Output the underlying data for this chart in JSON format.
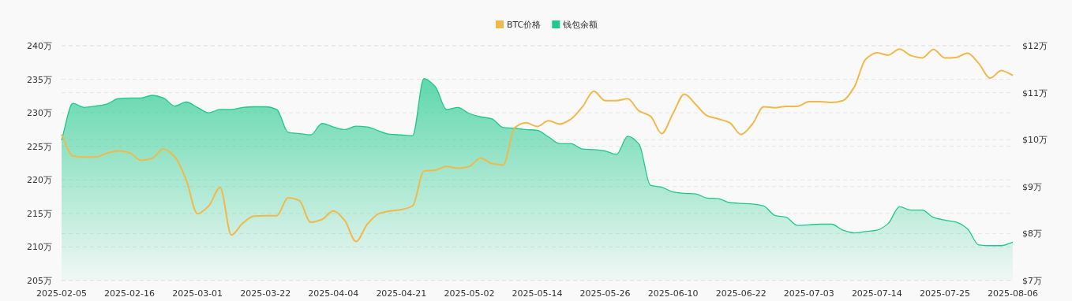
{
  "chart_data": {
    "type": "area",
    "legend": "top",
    "grid": true,
    "categories": [
      "2025-02-05",
      null,
      null,
      null,
      null,
      null,
      "2025-02-16",
      null,
      null,
      null,
      null,
      null,
      "2025-03-01",
      null,
      null,
      null,
      null,
      null,
      "2025-03-22",
      null,
      null,
      null,
      null,
      null,
      "2025-04-04",
      null,
      null,
      null,
      null,
      null,
      "2025-04-21",
      null,
      null,
      null,
      null,
      null,
      "2025-05-02",
      null,
      null,
      null,
      null,
      null,
      "2025-05-14",
      null,
      null,
      null,
      null,
      null,
      "2025-05-26",
      null,
      null,
      null,
      null,
      null,
      "2025-06-10",
      null,
      null,
      null,
      null,
      null,
      "2025-06-22",
      null,
      null,
      null,
      null,
      null,
      "2025-07-03",
      null,
      null,
      null,
      null,
      null,
      "2025-07-14",
      null,
      null,
      null,
      null,
      null,
      "2025-07-25",
      null,
      null,
      null,
      null,
      null,
      "2025-08-06"
    ],
    "ylim": [
      205,
      240
    ],
    "yticks": [
      {
        "value": 205,
        "label": "205万"
      },
      {
        "value": 210,
        "label": "210万"
      },
      {
        "value": 215,
        "label": "215万"
      },
      {
        "value": 220,
        "label": "220万"
      },
      {
        "value": 225,
        "label": "225万"
      },
      {
        "value": 230,
        "label": "230万"
      },
      {
        "value": 235,
        "label": "235万"
      },
      {
        "value": 240,
        "label": "240万"
      }
    ],
    "y2lim": [
      7,
      12
    ],
    "y2ticks": [
      {
        "value": 7,
        "label": "$7万"
      },
      {
        "value": 8,
        "label": "$8万"
      },
      {
        "value": 9,
        "label": "$9万"
      },
      {
        "value": 10,
        "label": "$10万"
      },
      {
        "value": 11,
        "label": "$11万"
      },
      {
        "value": 12,
        "label": "$12万"
      }
    ],
    "series": [
      {
        "name": "BTC价格",
        "type": "line",
        "axis": "y2",
        "color": "#f0b94a",
        "values": [
          10.11,
          9.65,
          9.63,
          9.63,
          9.71,
          9.76,
          9.72,
          9.56,
          9.6,
          9.8,
          9.63,
          9.15,
          8.42,
          8.59,
          8.98,
          7.97,
          8.22,
          8.37,
          8.38,
          8.38,
          8.76,
          8.7,
          8.24,
          8.3,
          8.48,
          8.28,
          7.83,
          8.2,
          8.42,
          8.48,
          8.51,
          8.59,
          9.33,
          9.35,
          9.43,
          9.39,
          9.43,
          9.61,
          9.49,
          9.46,
          10.25,
          10.36,
          10.28,
          10.4,
          10.33,
          10.44,
          10.7,
          11.03,
          10.83,
          10.83,
          10.87,
          10.61,
          10.5,
          10.13,
          10.56,
          10.97,
          10.75,
          10.51,
          10.44,
          10.36,
          10.11,
          10.33,
          10.7,
          10.68,
          10.71,
          10.71,
          10.81,
          10.81,
          10.79,
          10.83,
          11.12,
          11.71,
          11.85,
          11.8,
          11.93,
          11.79,
          11.74,
          11.92,
          11.74,
          11.75,
          11.84,
          11.62,
          11.31,
          11.47,
          11.37
        ]
      },
      {
        "name": "钱包余额",
        "color": "#1dc98b",
        "values": [
          225.9,
          231.4,
          230.8,
          231.0,
          231.3,
          232.1,
          232.2,
          232.2,
          232.6,
          232.2,
          231.0,
          231.6,
          230.8,
          230.0,
          230.5,
          230.5,
          230.8,
          230.9,
          230.9,
          230.5,
          227.1,
          226.9,
          226.7,
          228.4,
          227.9,
          227.5,
          228.0,
          227.9,
          227.3,
          226.8,
          226.7,
          226.6,
          235.1,
          233.9,
          230.5,
          230.8,
          229.9,
          229.4,
          229.1,
          227.8,
          227.7,
          227.5,
          227.4,
          226.4,
          225.4,
          225.4,
          224.6,
          224.5,
          224.3,
          223.8,
          226.5,
          225.3,
          219.2,
          218.9,
          218.2,
          218.0,
          217.9,
          217.3,
          217.2,
          216.6,
          216.5,
          216.4,
          216.1,
          214.7,
          214.4,
          213.2,
          213.3,
          213.4,
          213.4,
          212.5,
          212.1,
          212.3,
          212.5,
          213.5,
          216.0,
          215.5,
          215.5,
          214.4,
          214.0,
          213.7,
          212.7,
          210.3,
          210.2,
          210.2,
          210.7
        ]
      }
    ]
  }
}
